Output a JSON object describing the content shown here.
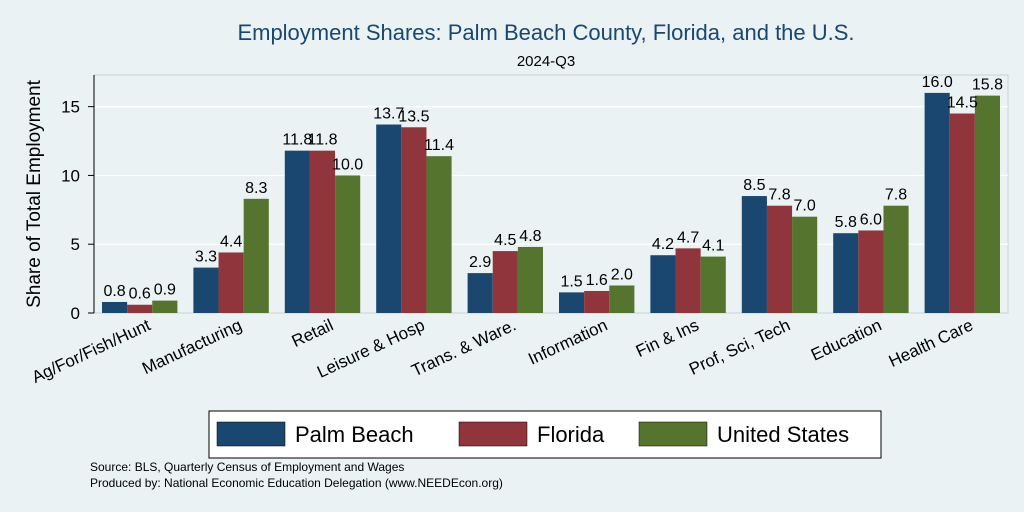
{
  "chart_data": {
    "type": "bar",
    "title": "Employment Shares: Palm Beach County, Florida, and the U.S.",
    "subtitle": "2024-Q3",
    "ylabel": "Share of Total Employment",
    "xlabel": "",
    "ylim": [
      0,
      17.3
    ],
    "yticks": [
      0,
      5,
      10,
      15
    ],
    "grid": true,
    "legend_position": "bottom",
    "categories": [
      "Ag/For/Fish/Hunt",
      "Manufacturing",
      "Retail",
      "Leisure & Hosp",
      "Trans. & Ware.",
      "Information",
      "Fin & Ins",
      "Prof, Sci, Tech",
      "Education",
      "Health Care"
    ],
    "series": [
      {
        "name": "Palm Beach",
        "color": "#1A476F",
        "values": [
          0.8,
          3.3,
          11.8,
          13.7,
          2.9,
          1.5,
          4.2,
          8.5,
          5.8,
          16.0
        ]
      },
      {
        "name": "Florida",
        "color": "#90353B",
        "values": [
          0.6,
          4.4,
          11.8,
          13.5,
          4.5,
          1.6,
          4.7,
          7.8,
          6.0,
          14.5
        ]
      },
      {
        "name": "United States",
        "color": "#55752F",
        "values": [
          0.9,
          8.3,
          10.0,
          11.4,
          4.8,
          2.0,
          4.1,
          7.0,
          7.8,
          15.8
        ]
      }
    ],
    "value_format_decimals": 1
  },
  "notes": {
    "source": "Source: BLS, Quarterly Census of Employment and Wages",
    "produced": "Produced by: National Economic Education Delegation (www.NEEDEcon.org)"
  }
}
